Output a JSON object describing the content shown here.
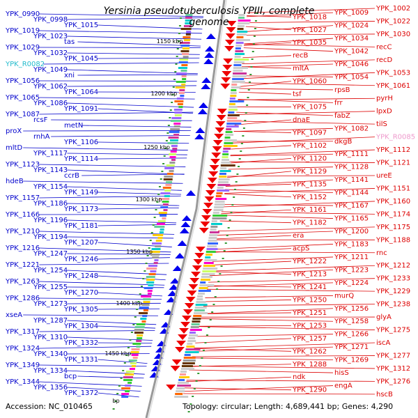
{
  "title": "Yersinia pseudotuberculosis YPIII, complete genome",
  "footer": {
    "accession": "Accession: NC_010465",
    "summary": "Topology: circular; Length: 4,689,441 bp; Genes: 4,290"
  },
  "colors": {
    "left_labels": "#0000cc",
    "right_labels": "#dd0000",
    "left_rna": "#22bbcc",
    "right_rna": "#ee99cc",
    "backbone": "#999999",
    "tick": "#339933"
  },
  "kbp_ticks": [
    "1150 kbp",
    "1200 kbp",
    "1250 kbp",
    "1300 kbp",
    "1350 kbp",
    "1400 kbp",
    "1450 kbp",
    "bp"
  ],
  "left_labels": [
    "YPK_0990",
    "YPK_0998",
    "YPK_1015",
    "YPK_1019",
    "YPK_1023",
    "tas",
    "YPK_1029",
    "YPK_1032",
    "YPK_1045",
    "YPK_R0082",
    "YPK_1049",
    "xni",
    "YPK_1056",
    "YPK_1062",
    "YPK_1064",
    "YPK_1065",
    "YPK_1086",
    "YPK_1091",
    "YPK_1087",
    "rcsF",
    "metN",
    "proX",
    "rnhA",
    "YPK_1106",
    "mltD",
    "YPK_1117",
    "YPK_1114",
    "YPK_1123",
    "YPK_1143",
    "ccrB",
    "hdeB",
    "YPK_1154",
    "YPK_1149",
    "YPK_1157",
    "YPK_1186",
    "YPK_1173",
    "YPK_1166",
    "YPK_1196",
    "YPK_1181",
    "YPK_1210",
    "YPK_1194",
    "YPK_1207",
    "YPK_1216",
    "YPK_1247",
    "YPK_1246",
    "YPK_1221",
    "YPK_1254",
    "YPK_1248",
    "YPK_1263",
    "YPK_1255",
    "YPK_1270",
    "YPK_1286",
    "YPK_1273",
    "YPK_1305",
    "xseA",
    "YPK_1287",
    "YPK_1304",
    "YPK_1317",
    "YPK_1310",
    "YPK_1332",
    "YPK_1324",
    "YPK_1340",
    "YPK_1331",
    "YPK_1349",
    "YPK_1334",
    "bcp",
    "YPK_1344",
    "YPK_1356",
    "YPK_1372"
  ],
  "right_labels": [
    "YPK_1002",
    "YPK_1009",
    "YPK_1018",
    "YPK_1022",
    "YPK_1024",
    "YPK_1027",
    "YPK_1030",
    "YPK_1034",
    "YPK_1035",
    "recC",
    "YPK_1042",
    "recB",
    "recD",
    "YPK_1046",
    "mltA",
    "YPK_1053",
    "YPK_1054",
    "YPK_1060",
    "YPK_1061",
    "rpsB",
    "tsf",
    "pyrH",
    "frr",
    "YPK_1075",
    "lpxD",
    "fabZ",
    "dnaE",
    "tilS",
    "YPK_1082",
    "YPK_1097",
    "YPK_R0085",
    "dkgB",
    "YPK_1102",
    "YPK_1112",
    "YPK_1111",
    "YPK_1120",
    "YPK_1121",
    "YPK_1128",
    "YPK_1129",
    "ureE",
    "YPK_1141",
    "YPK_1135",
    "YPK_1151",
    "YPK_1144",
    "YPK_1152",
    "YPK_1160",
    "YPK_1167",
    "YPK_1161",
    "YPK_1174",
    "YPK_1165",
    "YPK_1182",
    "YPK_1175",
    "YPK_1200",
    "era",
    "YPK_1188",
    "YPK_1183",
    "acpS",
    "rnc",
    "YPK_1211",
    "YPK_1222",
    "YPK_1212",
    "YPK_1223",
    "YPK_1213",
    "YPK_1233",
    "YPK_1224",
    "YPK_1241",
    "YPK_1229",
    "murQ",
    "YPK_1250",
    "YPK_1238",
    "YPK_1256",
    "YPK_1251",
    "glyA",
    "YPK_1258",
    "YPK_1253",
    "YPK_1275",
    "YPK_1266",
    "YPK_1257",
    "iscA",
    "YPK_1271",
    "YPK_1262",
    "YPK_1277",
    "YPK_1269",
    "YPK_1288",
    "YPK_1312",
    "hisS",
    "ndk",
    "YPK_1276",
    "engA",
    "YPK_1290",
    "hscB"
  ]
}
